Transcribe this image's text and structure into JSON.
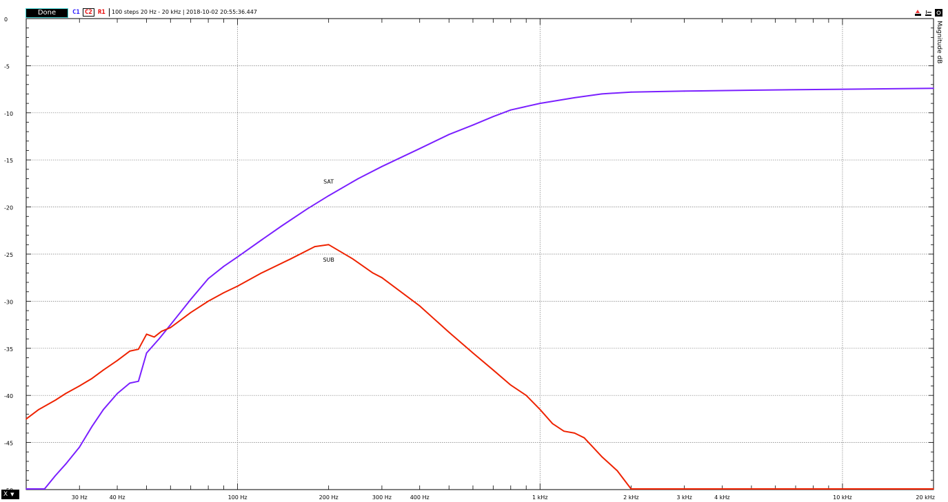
{
  "toolbar": {
    "status_button": "Done",
    "channels": [
      "C1",
      "C2",
      "R1"
    ],
    "info": "100 steps  20 Hz - 20 kHz | 2018-10-02 20:55:36.447",
    "icons": [
      "marker-icon",
      "cursor-icon",
      "settings-icon"
    ]
  },
  "x_button": "X",
  "chart_data": {
    "type": "line",
    "ylabel": "Magnitude dB",
    "xlabel": "",
    "xscale": "log",
    "xlim": [
      20,
      20000
    ],
    "ylim": [
      -50,
      0
    ],
    "grid": true,
    "yticks": [
      0,
      -5,
      -10,
      -15,
      -20,
      -25,
      -30,
      -35,
      -40,
      -45,
      -50
    ],
    "xticks": [
      {
        "v": 30,
        "label": "30 Hz"
      },
      {
        "v": 40,
        "label": "40 Hz"
      },
      {
        "v": 100,
        "label": "100 Hz"
      },
      {
        "v": 200,
        "label": "200 Hz"
      },
      {
        "v": 300,
        "label": "300 Hz"
      },
      {
        "v": 400,
        "label": "400 Hz"
      },
      {
        "v": 1000,
        "label": "1 kHz"
      },
      {
        "v": 2000,
        "label": "2 kHz"
      },
      {
        "v": 3000,
        "label": "3 kHz"
      },
      {
        "v": 4000,
        "label": "4 kHz"
      },
      {
        "v": 10000,
        "label": "10 kHz"
      },
      {
        "v": 20000,
        "label": "20 kHz"
      }
    ],
    "annotations": [
      {
        "text": "SAT",
        "x": 200,
        "y": -17.5
      },
      {
        "text": "SUB",
        "x": 200,
        "y": -25.8
      }
    ],
    "series": [
      {
        "color": "#7a1fff",
        "points": [
          [
            20,
            -50
          ],
          [
            23,
            -50
          ],
          [
            25,
            -48.5
          ],
          [
            27,
            -47.3
          ],
          [
            30,
            -45.5
          ],
          [
            33,
            -43.3
          ],
          [
            36,
            -41.5
          ],
          [
            40,
            -39.8
          ],
          [
            44,
            -38.7
          ],
          [
            47,
            -38.5
          ],
          [
            50,
            -35.5
          ],
          [
            55,
            -34
          ],
          [
            60,
            -32.5
          ],
          [
            70,
            -29.8
          ],
          [
            80,
            -27.6
          ],
          [
            90,
            -26.3
          ],
          [
            100,
            -25.3
          ],
          [
            120,
            -23.5
          ],
          [
            140,
            -22
          ],
          [
            170,
            -20.2
          ],
          [
            200,
            -18.8
          ],
          [
            250,
            -17
          ],
          [
            300,
            -15.7
          ],
          [
            400,
            -13.8
          ],
          [
            500,
            -12.3
          ],
          [
            600,
            -11.3
          ],
          [
            700,
            -10.4
          ],
          [
            800,
            -9.7
          ],
          [
            1000,
            -9.0
          ],
          [
            1300,
            -8.4
          ],
          [
            1600,
            -8.0
          ],
          [
            2000,
            -7.8
          ],
          [
            3000,
            -7.7
          ],
          [
            5000,
            -7.6
          ],
          [
            10000,
            -7.5
          ],
          [
            20000,
            -7.4
          ]
        ]
      },
      {
        "color": "#ee2200",
        "points": [
          [
            20,
            -42.5
          ],
          [
            22,
            -41.5
          ],
          [
            25,
            -40.5
          ],
          [
            27,
            -39.8
          ],
          [
            30,
            -39
          ],
          [
            33,
            -38.2
          ],
          [
            36,
            -37.3
          ],
          [
            40,
            -36.3
          ],
          [
            44,
            -35.3
          ],
          [
            47,
            -35.1
          ],
          [
            50,
            -33.5
          ],
          [
            53,
            -33.8
          ],
          [
            56,
            -33.2
          ],
          [
            60,
            -32.8
          ],
          [
            70,
            -31.2
          ],
          [
            80,
            -30.0
          ],
          [
            90,
            -29.1
          ],
          [
            100,
            -28.4
          ],
          [
            120,
            -27
          ],
          [
            150,
            -25.5
          ],
          [
            180,
            -24.2
          ],
          [
            200,
            -24.0
          ],
          [
            240,
            -25.5
          ],
          [
            280,
            -27
          ],
          [
            300,
            -27.5
          ],
          [
            400,
            -30.5
          ],
          [
            500,
            -33.3
          ],
          [
            600,
            -35.5
          ],
          [
            700,
            -37.3
          ],
          [
            800,
            -38.9
          ],
          [
            900,
            -40
          ],
          [
            1000,
            -41.5
          ],
          [
            1100,
            -43
          ],
          [
            1200,
            -43.8
          ],
          [
            1300,
            -44
          ],
          [
            1400,
            -44.5
          ],
          [
            1600,
            -46.5
          ],
          [
            1800,
            -48
          ],
          [
            2000,
            -50
          ],
          [
            20000,
            -50
          ]
        ]
      }
    ]
  }
}
